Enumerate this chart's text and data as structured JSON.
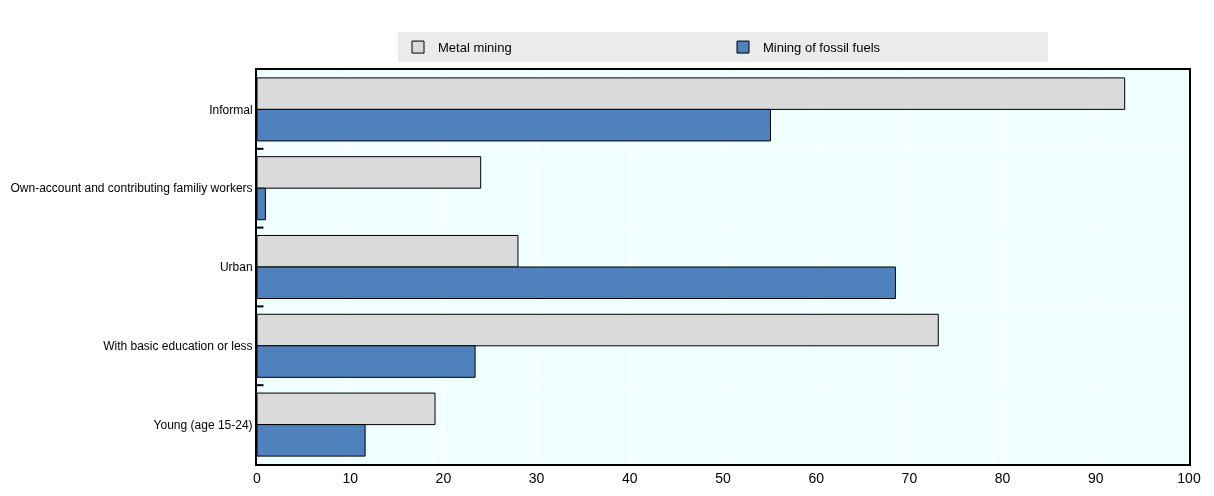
{
  "chart_data": {
    "type": "bar",
    "orientation": "horizontal",
    "categories": [
      "Informal",
      "Own-account and contributing familiy workers",
      "Urban",
      "With basic education or less",
      "Young (age 15-24)"
    ],
    "series": [
      {
        "name": "Metal mining",
        "color": "#dadada",
        "values": [
          93.1,
          24.0,
          28.0,
          73.1,
          19.1
        ]
      },
      {
        "name": "Mining of fossil fuels",
        "color": "#4f81bd",
        "values": [
          55.1,
          0.9,
          68.5,
          23.4,
          11.6
        ]
      }
    ],
    "xlim": [
      0,
      100
    ],
    "xticks": [
      0,
      10,
      20,
      30,
      40,
      50,
      60,
      70,
      80,
      90,
      100
    ],
    "grid": true,
    "legend": "top"
  }
}
